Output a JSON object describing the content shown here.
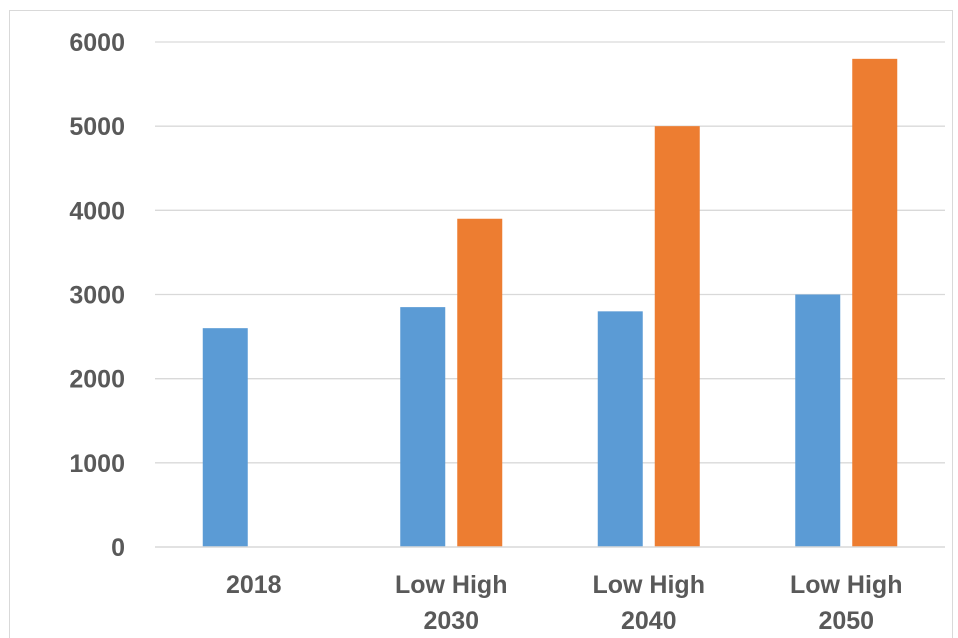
{
  "chart_data": {
    "type": "bar",
    "categories": [
      {
        "top": "",
        "bottom": "2018"
      },
      {
        "top": "Low High",
        "bottom": "2030"
      },
      {
        "top": "Low High",
        "bottom": "2040"
      },
      {
        "top": "Low High",
        "bottom": "2050"
      }
    ],
    "series": [
      {
        "values": [
          2600,
          2850,
          2800,
          3000
        ],
        "color": "#5b9bd5"
      },
      {
        "values": [
          null,
          3900,
          5000,
          5800
        ],
        "color": "#ed7d31"
      }
    ],
    "title": "",
    "xlabel": "",
    "ylabel": "",
    "ylim": [
      0,
      6000
    ],
    "yticks": [
      "0",
      "1000",
      "2000",
      "3000",
      "4000",
      "5000",
      "6000"
    ],
    "grid": true,
    "legend": "none"
  }
}
